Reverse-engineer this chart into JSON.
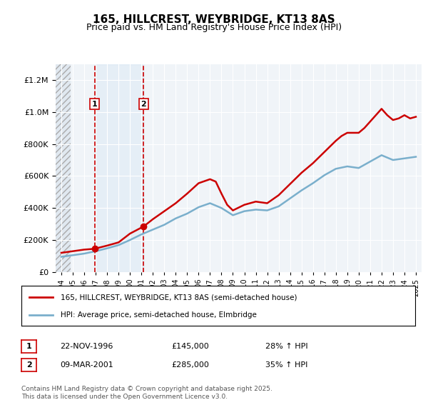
{
  "title": "165, HILLCREST, WEYBRIDGE, KT13 8AS",
  "subtitle": "Price paid vs. HM Land Registry's House Price Index (HPI)",
  "legend_line1": "165, HILLCREST, WEYBRIDGE, KT13 8AS (semi-detached house)",
  "legend_line2": "HPI: Average price, semi-detached house, Elmbridge",
  "footnote": "Contains HM Land Registry data © Crown copyright and database right 2025.\nThis data is licensed under the Open Government Licence v3.0.",
  "sale1_label": "1",
  "sale1_date": "22-NOV-1996",
  "sale1_price": "£145,000",
  "sale1_hpi": "28% ↑ HPI",
  "sale2_label": "2",
  "sale2_date": "09-MAR-2001",
  "sale2_price": "£285,000",
  "sale2_hpi": "35% ↑ HPI",
  "red_color": "#cc0000",
  "blue_color": "#7aafcc",
  "hatch_color": "#cccccc",
  "background_color": "#ffffff",
  "plot_bg_color": "#f0f4f8",
  "grid_color": "#ffffff",
  "ylim": [
    0,
    1300000
  ],
  "yticks": [
    0,
    200000,
    400000,
    600000,
    800000,
    1000000,
    1200000
  ],
  "xlabel_start": 1994,
  "xlabel_end": 2025,
  "sale1_x": 1996.9,
  "sale2_x": 2001.2,
  "red_line_data_x": [
    1994,
    1995,
    1996,
    1996.9,
    1998,
    1999,
    2000,
    2001.2,
    2002,
    2003,
    2004,
    2005,
    2006,
    2007,
    2007.5,
    2008,
    2008.5,
    2009,
    2010,
    2011,
    2012,
    2013,
    2014,
    2015,
    2016,
    2017,
    2018,
    2018.5,
    2019,
    2020,
    2020.5,
    2021,
    2021.5,
    2022,
    2022.5,
    2023,
    2023.5,
    2024,
    2024.5,
    2025
  ],
  "red_line_data_y": [
    120000,
    130000,
    140000,
    145000,
    165000,
    185000,
    240000,
    285000,
    330000,
    380000,
    430000,
    490000,
    555000,
    580000,
    565000,
    490000,
    420000,
    385000,
    420000,
    440000,
    430000,
    480000,
    550000,
    620000,
    680000,
    750000,
    820000,
    850000,
    870000,
    870000,
    900000,
    940000,
    980000,
    1020000,
    980000,
    950000,
    960000,
    980000,
    960000,
    970000
  ],
  "blue_line_data_x": [
    1994,
    1995,
    1996,
    1997,
    1998,
    1999,
    2000,
    2001,
    2002,
    2003,
    2004,
    2005,
    2006,
    2007,
    2008,
    2009,
    2010,
    2011,
    2012,
    2013,
    2014,
    2015,
    2016,
    2017,
    2018,
    2019,
    2020,
    2021,
    2022,
    2023,
    2024,
    2025
  ],
  "blue_line_data_y": [
    95000,
    105000,
    115000,
    130000,
    148000,
    168000,
    200000,
    235000,
    265000,
    295000,
    335000,
    365000,
    405000,
    430000,
    400000,
    355000,
    380000,
    390000,
    385000,
    410000,
    460000,
    510000,
    555000,
    605000,
    645000,
    660000,
    650000,
    690000,
    730000,
    700000,
    710000,
    720000
  ]
}
